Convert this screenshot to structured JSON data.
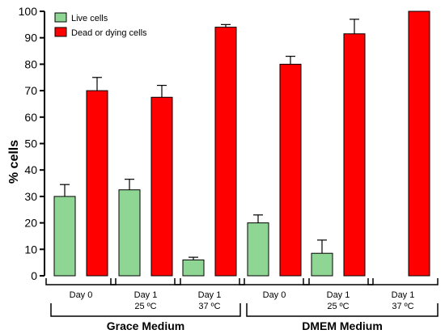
{
  "chart_data": {
    "type": "bar",
    "ylabel": "% cells",
    "xlabel": "",
    "ylim": [
      0,
      100
    ],
    "yticks": [
      0,
      10,
      20,
      30,
      40,
      50,
      60,
      70,
      80,
      90,
      100
    ],
    "grid": false,
    "legend_position": "top-left",
    "categories": [
      {
        "line1": "Day 0",
        "line2": ""
      },
      {
        "line1": "Day 1",
        "line2": "25 ºC"
      },
      {
        "line1": "Day 1",
        "line2": "37 ºC"
      },
      {
        "line1": "Day 0",
        "line2": ""
      },
      {
        "line1": "Day 1",
        "line2": "25 ºC"
      },
      {
        "line1": "Day 1",
        "line2": "37 ºC"
      }
    ],
    "groups": [
      {
        "label": "Grace Medium",
        "categories": [
          0,
          1,
          2
        ]
      },
      {
        "label": "DMEM Medium",
        "categories": [
          3,
          4,
          5
        ]
      }
    ],
    "series": [
      {
        "name": "Live cells",
        "color": "#8fd694",
        "values": [
          30,
          32.5,
          6,
          20,
          8.5,
          0
        ],
        "errors": [
          4.5,
          4,
          1,
          3,
          5,
          0
        ]
      },
      {
        "name": "Dead or dying cells",
        "color": "#ff0000",
        "values": [
          70,
          67.5,
          94,
          80,
          91.5,
          100
        ],
        "errors": [
          5,
          4.5,
          1,
          3,
          5.5,
          0
        ]
      }
    ]
  }
}
